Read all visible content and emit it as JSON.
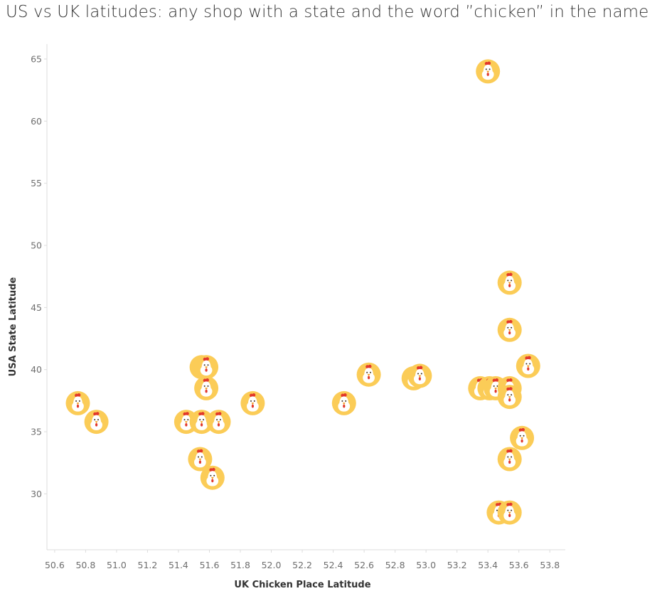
{
  "chart_data": {
    "type": "scatter",
    "title": "US vs UK latitudes: any shop with a state and the word ”chicken” in the name",
    "xlabel": "UK Chicken Place Latitude",
    "ylabel": "USA State Latitude",
    "xlim": [
      50.55,
      53.9
    ],
    "ylim": [
      25.5,
      66.2
    ],
    "x_ticks": [
      50.6,
      50.8,
      51.0,
      51.2,
      51.4,
      51.6,
      51.8,
      52.0,
      52.2,
      52.4,
      52.6,
      52.8,
      53.0,
      53.2,
      53.4,
      53.6,
      53.8
    ],
    "x_tick_labels": [
      "50.6",
      "50.8",
      "51.0",
      "51.2",
      "51.4",
      "51.6",
      "51.8",
      "52.0",
      "52.2",
      "52.4",
      "52.6",
      "52.8",
      "53.0",
      "53.2",
      "53.4",
      "53.6",
      "53.8"
    ],
    "y_ticks": [
      30,
      35,
      40,
      45,
      50,
      55,
      60,
      65
    ],
    "y_tick_labels": [
      "30",
      "35",
      "40",
      "45",
      "50",
      "55",
      "60",
      "65"
    ],
    "grid": false,
    "marker": "chicken-icon",
    "points": [
      {
        "x": 50.75,
        "y": 37.3
      },
      {
        "x": 50.87,
        "y": 35.8
      },
      {
        "x": 51.45,
        "y": 35.8
      },
      {
        "x": 51.55,
        "y": 35.8
      },
      {
        "x": 51.66,
        "y": 35.8
      },
      {
        "x": 51.55,
        "y": 40.2
      },
      {
        "x": 51.58,
        "y": 40.2
      },
      {
        "x": 51.58,
        "y": 38.5
      },
      {
        "x": 51.54,
        "y": 32.8
      },
      {
        "x": 51.62,
        "y": 31.3
      },
      {
        "x": 51.88,
        "y": 37.3
      },
      {
        "x": 52.47,
        "y": 37.3
      },
      {
        "x": 52.63,
        "y": 39.6
      },
      {
        "x": 52.92,
        "y": 39.3
      },
      {
        "x": 52.96,
        "y": 39.5
      },
      {
        "x": 53.35,
        "y": 38.5
      },
      {
        "x": 53.4,
        "y": 64.0
      },
      {
        "x": 53.41,
        "y": 38.5
      },
      {
        "x": 53.45,
        "y": 38.5
      },
      {
        "x": 53.47,
        "y": 28.5
      },
      {
        "x": 53.54,
        "y": 28.5
      },
      {
        "x": 53.54,
        "y": 38.5
      },
      {
        "x": 53.54,
        "y": 37.8
      },
      {
        "x": 53.54,
        "y": 43.2
      },
      {
        "x": 53.54,
        "y": 47.0
      },
      {
        "x": 53.54,
        "y": 32.8
      },
      {
        "x": 53.62,
        "y": 34.5
      },
      {
        "x": 53.66,
        "y": 40.3
      }
    ]
  },
  "colors": {
    "marker_fill": "#fbcc57",
    "chicken_body": "#ffffff",
    "comb": "#e2382b",
    "beak": "#f49a1e",
    "eye": "#3a2a1a",
    "axis": "#dcdcdc",
    "tick_text": "#6e6e6e"
  }
}
